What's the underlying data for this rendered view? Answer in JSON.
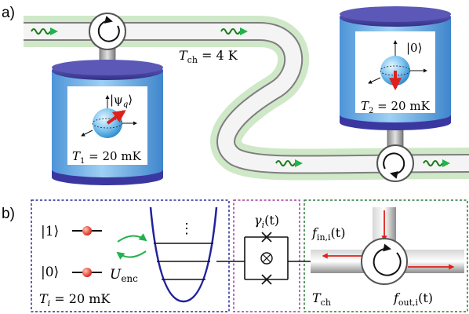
{
  "panel_a": {
    "label": "a)",
    "channel_temp": "T",
    "channel_temp_sub": "ch",
    "channel_temp_value": " = 4 K",
    "node1_state": "|ψ",
    "node1_state_sub": "q",
    "node1_state_close": "⟩",
    "node1_temp": "T",
    "node1_temp_sub": "1",
    "node1_temp_value": " = 20 mK",
    "node2_state": "|0⟩",
    "node2_temp": "T",
    "node2_temp_sub": "2",
    "node2_temp_value": " = 20 mK"
  },
  "panel_b": {
    "label": "b)",
    "level_1": "|1⟩",
    "level_0": "|0⟩",
    "encoding_op": "U",
    "encoding_op_sub": "enc",
    "node_temp": "T",
    "node_temp_sub": "i",
    "node_temp_value": " = 20 mK",
    "ladder_dots": "⋮",
    "coupling": "γ",
    "coupling_sub": "i",
    "coupling_arg": "(t)",
    "f_in": "f",
    "f_in_sub": "in,i",
    "f_in_arg": "(t)",
    "f_out": "f",
    "f_out_sub": "out,i",
    "f_out_arg": "(t)",
    "channel_temp": "T",
    "channel_temp_sub": "ch"
  },
  "colors": {
    "cylinder_body": "#6aaee6",
    "cylinder_cap": "#4d4aa8",
    "waveguide_halo": "#cfe8c8",
    "waveguide_fill": "#f2f2f2",
    "signal_green": "#1a7a1a",
    "state_arrow": "#e0201a",
    "box_blue": "#2b2b9a",
    "box_purple": "#a23aa2",
    "box_green": "#2a7a3a",
    "harmonic_blue": "#22229a"
  }
}
